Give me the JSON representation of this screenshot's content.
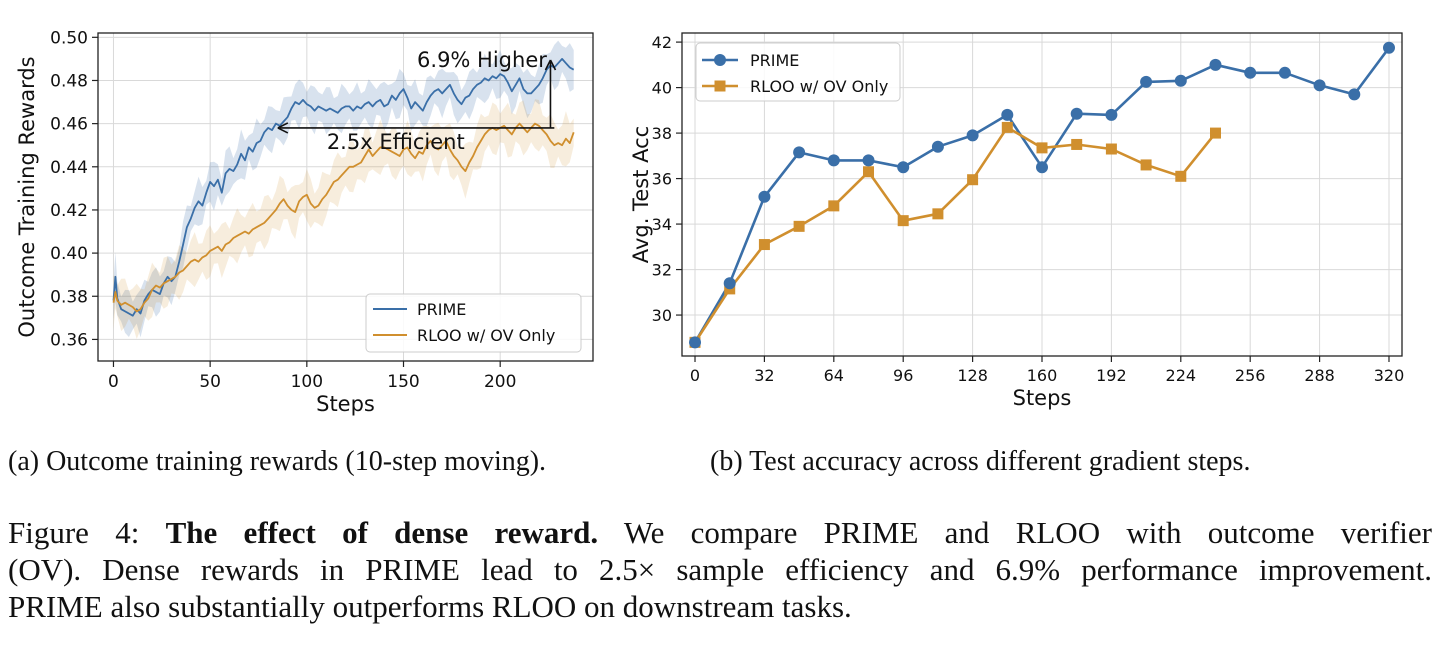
{
  "figure": {
    "label": "Figure 4:",
    "bold_title": "The effect of dense reward.",
    "line1_rest": "We compare PRIME and RLOO with outcome verifier",
    "line2": "(OV). Dense rewards in PRIME lead to 2.5× sample efficiency and 6.9% performance improvement.",
    "line3": "PRIME also substantially outperforms RLOO on downstream tasks."
  },
  "subcaptions": {
    "a": "(a) Outcome training rewards (10-step moving).",
    "b": "(b) Test accuracy across different gradient steps."
  },
  "chart_data": [
    {
      "type": "line",
      "title": "",
      "xlabel": "Steps",
      "ylabel": "Outcome Training Rewards",
      "xlim": [
        -8,
        248
      ],
      "ylim": [
        0.35,
        0.502
      ],
      "xticks": [
        0,
        50,
        100,
        150,
        200
      ],
      "yticks": [
        0.36,
        0.38,
        0.4,
        0.42,
        0.44,
        0.46,
        0.48,
        0.5
      ],
      "ytick_labels": [
        "0.36",
        "0.38",
        "0.40",
        "0.42",
        "0.44",
        "0.46",
        "0.48",
        "0.50"
      ],
      "grid": true,
      "legend": "bottom-right",
      "shaded_band": "±1 std",
      "series": [
        {
          "name": "PRIME",
          "color": "#3a6fa8",
          "x": [
            0,
            1,
            2,
            4,
            6,
            8,
            10,
            12,
            14,
            16,
            18,
            20,
            22,
            24,
            26,
            28,
            30,
            32,
            34,
            36,
            38,
            40,
            42,
            44,
            46,
            48,
            50,
            52,
            54,
            56,
            58,
            60,
            62,
            64,
            66,
            68,
            70,
            72,
            74,
            76,
            78,
            80,
            82,
            84,
            86,
            88,
            90,
            92,
            94,
            96,
            98,
            100,
            102,
            104,
            106,
            108,
            110,
            112,
            114,
            116,
            118,
            120,
            122,
            124,
            126,
            128,
            130,
            132,
            134,
            136,
            138,
            140,
            142,
            144,
            146,
            148,
            150,
            152,
            154,
            156,
            158,
            160,
            162,
            164,
            166,
            168,
            170,
            172,
            174,
            176,
            178,
            180,
            182,
            184,
            186,
            188,
            190,
            192,
            194,
            196,
            198,
            200,
            202,
            204,
            206,
            208,
            210,
            212,
            214,
            216,
            218,
            220,
            222,
            224,
            226,
            228,
            230,
            232,
            234,
            236,
            238
          ],
          "values": [
            0.378,
            0.389,
            0.379,
            0.374,
            0.373,
            0.372,
            0.371,
            0.374,
            0.372,
            0.378,
            0.381,
            0.383,
            0.382,
            0.381,
            0.386,
            0.389,
            0.387,
            0.389,
            0.396,
            0.404,
            0.412,
            0.416,
            0.421,
            0.424,
            0.422,
            0.428,
            0.433,
            0.431,
            0.434,
            0.428,
            0.437,
            0.439,
            0.438,
            0.441,
            0.446,
            0.443,
            0.449,
            0.447,
            0.451,
            0.452,
            0.456,
            0.458,
            0.457,
            0.46,
            0.459,
            0.461,
            0.463,
            0.467,
            0.47,
            0.469,
            0.471,
            0.469,
            0.468,
            0.466,
            0.468,
            0.467,
            0.466,
            0.467,
            0.466,
            0.465,
            0.467,
            0.468,
            0.468,
            0.466,
            0.468,
            0.467,
            0.469,
            0.47,
            0.468,
            0.47,
            0.471,
            0.468,
            0.469,
            0.473,
            0.471,
            0.474,
            0.476,
            0.472,
            0.467,
            0.47,
            0.468,
            0.466,
            0.47,
            0.473,
            0.475,
            0.476,
            0.474,
            0.476,
            0.478,
            0.474,
            0.471,
            0.469,
            0.472,
            0.473,
            0.476,
            0.478,
            0.479,
            0.481,
            0.48,
            0.482,
            0.481,
            0.483,
            0.482,
            0.479,
            0.475,
            0.478,
            0.481,
            0.476,
            0.474,
            0.474,
            0.476,
            0.478,
            0.481,
            0.485,
            0.487,
            0.486,
            0.488,
            0.49,
            0.488,
            0.486,
            0.485
          ],
          "band": 0.0085
        },
        {
          "name": "RLOO w/ OV Only",
          "color": "#d08f2e",
          "x": [
            0,
            1,
            2,
            4,
            6,
            8,
            10,
            12,
            14,
            16,
            18,
            20,
            22,
            24,
            26,
            28,
            30,
            32,
            34,
            36,
            38,
            40,
            42,
            44,
            46,
            48,
            50,
            52,
            54,
            56,
            58,
            60,
            62,
            64,
            66,
            68,
            70,
            72,
            74,
            76,
            78,
            80,
            82,
            84,
            86,
            88,
            90,
            92,
            94,
            96,
            98,
            100,
            102,
            104,
            106,
            108,
            110,
            112,
            114,
            116,
            118,
            120,
            122,
            124,
            126,
            128,
            130,
            132,
            134,
            136,
            138,
            140,
            142,
            144,
            146,
            148,
            150,
            152,
            154,
            156,
            158,
            160,
            162,
            164,
            166,
            168,
            170,
            172,
            174,
            176,
            178,
            180,
            182,
            184,
            186,
            188,
            190,
            192,
            194,
            196,
            198,
            200,
            202,
            204,
            206,
            208,
            210,
            212,
            214,
            216,
            218,
            220,
            222,
            224,
            226,
            228,
            230,
            232,
            234,
            236,
            238
          ],
          "values": [
            0.377,
            0.382,
            0.378,
            0.376,
            0.377,
            0.376,
            0.375,
            0.373,
            0.374,
            0.377,
            0.379,
            0.383,
            0.385,
            0.384,
            0.386,
            0.387,
            0.388,
            0.389,
            0.391,
            0.392,
            0.394,
            0.396,
            0.397,
            0.396,
            0.398,
            0.399,
            0.401,
            0.402,
            0.403,
            0.401,
            0.404,
            0.405,
            0.407,
            0.408,
            0.409,
            0.41,
            0.409,
            0.411,
            0.412,
            0.413,
            0.414,
            0.416,
            0.418,
            0.42,
            0.423,
            0.425,
            0.422,
            0.42,
            0.419,
            0.424,
            0.426,
            0.427,
            0.423,
            0.421,
            0.422,
            0.425,
            0.427,
            0.43,
            0.433,
            0.434,
            0.436,
            0.438,
            0.44,
            0.44,
            0.441,
            0.442,
            0.445,
            0.448,
            0.445,
            0.447,
            0.449,
            0.449,
            0.448,
            0.447,
            0.446,
            0.445,
            0.448,
            0.449,
            0.446,
            0.444,
            0.447,
            0.446,
            0.45,
            0.452,
            0.449,
            0.448,
            0.45,
            0.452,
            0.448,
            0.445,
            0.443,
            0.44,
            0.438,
            0.442,
            0.445,
            0.449,
            0.452,
            0.455,
            0.457,
            0.458,
            0.457,
            0.458,
            0.459,
            0.457,
            0.455,
            0.458,
            0.46,
            0.458,
            0.456,
            0.458,
            0.46,
            0.459,
            0.457,
            0.455,
            0.452,
            0.45,
            0.451,
            0.45,
            0.453,
            0.451,
            0.456
          ],
          "band": 0.0095
        }
      ],
      "annotations": [
        {
          "text": "6.9% Higher",
          "x": 157,
          "y": 0.4895
        },
        {
          "text": "2.5x Efficient",
          "x": 146,
          "y": 0.4515
        }
      ],
      "arrows": [
        {
          "type": "horizontal",
          "from": [
            228,
            0.458
          ],
          "to": [
            85,
            0.458
          ]
        },
        {
          "type": "vertical",
          "from": [
            226,
            0.458
          ],
          "to": [
            226,
            0.4895
          ]
        }
      ]
    },
    {
      "type": "line",
      "title": "",
      "xlabel": "Steps",
      "ylabel": "Avg. Test Acc",
      "xlim": [
        -6,
        326
      ],
      "ylim": [
        28.2,
        42.4
      ],
      "xticks": [
        0,
        32,
        64,
        96,
        128,
        160,
        192,
        224,
        256,
        288,
        320
      ],
      "yticks": [
        30,
        32,
        34,
        36,
        38,
        40,
        42
      ],
      "grid": true,
      "legend": "top-left",
      "series": [
        {
          "name": "PRIME",
          "color": "#3a6fa8",
          "marker": "circle",
          "x": [
            0,
            16,
            32,
            48,
            64,
            80,
            96,
            112,
            128,
            144,
            160,
            176,
            192,
            208,
            224,
            240,
            256,
            272,
            288,
            304,
            320
          ],
          "values": [
            28.8,
            31.4,
            35.2,
            37.15,
            36.8,
            36.8,
            36.5,
            37.4,
            37.9,
            38.8,
            36.5,
            38.85,
            38.8,
            40.25,
            40.3,
            41.0,
            40.65,
            40.65,
            40.1,
            39.7,
            41.75
          ]
        },
        {
          "name": "RLOO w/ OV Only",
          "color": "#d08f2e",
          "marker": "square",
          "x": [
            0,
            16,
            32,
            48,
            64,
            80,
            96,
            112,
            128,
            144,
            160,
            176,
            192,
            208,
            224,
            240
          ],
          "values": [
            28.8,
            31.15,
            33.1,
            33.9,
            34.8,
            36.3,
            34.15,
            34.45,
            35.95,
            38.25,
            37.35,
            37.5,
            37.3,
            36.6,
            36.1,
            38.0
          ]
        }
      ]
    }
  ]
}
